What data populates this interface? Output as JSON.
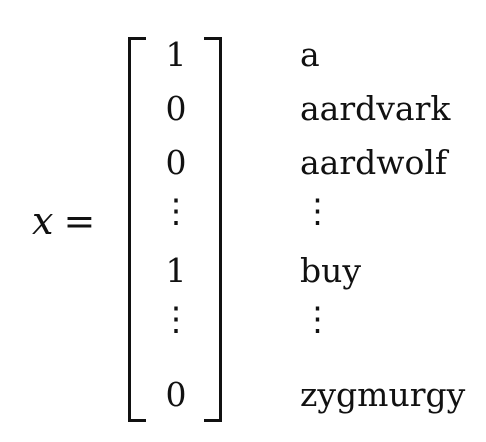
{
  "equation": {
    "variable": "x",
    "equals": "="
  },
  "vector": {
    "entries": [
      "1",
      "0",
      "0",
      "⋮",
      "1",
      "⋮",
      "0"
    ],
    "labels": [
      "a",
      "aardvark",
      "aardwolf",
      "⋮",
      "buy",
      "⋮",
      "zygmurgy"
    ]
  }
}
